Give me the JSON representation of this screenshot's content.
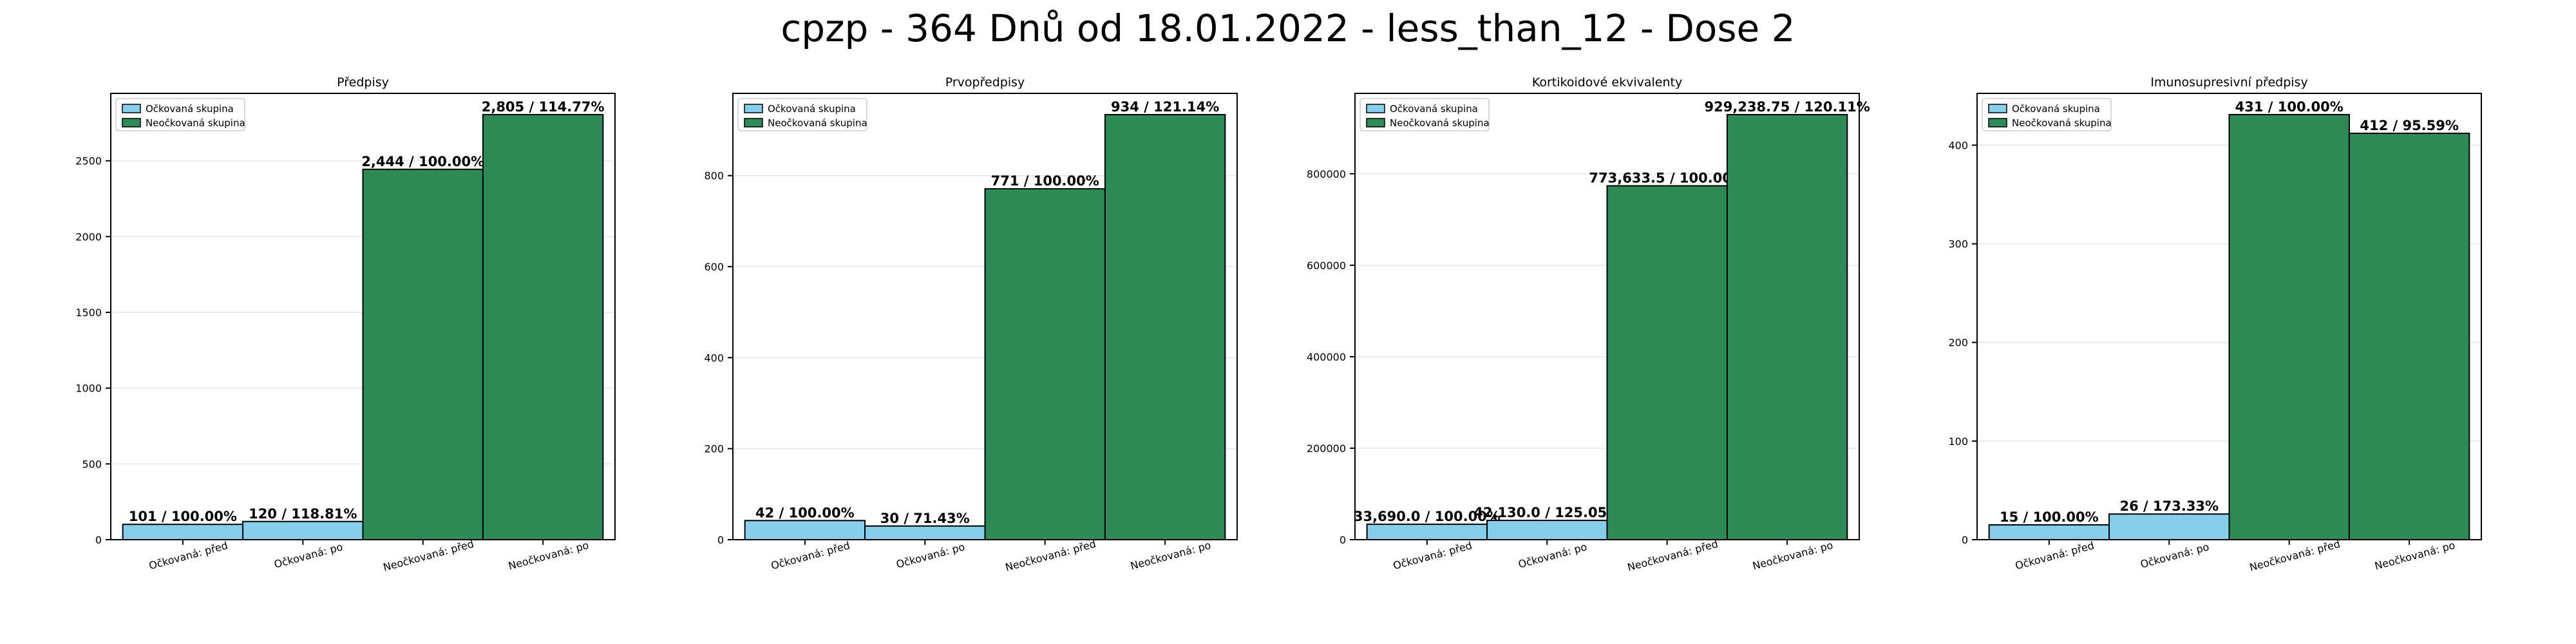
{
  "figure": {
    "title": "cpzp - 364 Dnů od 18.01.2022 - less_than_12 - Dose 2"
  },
  "colors": {
    "vaccinated": "#87ceeb",
    "unvaccinated": "#2e8b57",
    "edge": "#000000",
    "grid": "#e6e6e6"
  },
  "chart_data": [
    {
      "type": "bar",
      "title": "Předpisy",
      "categories": [
        "Očkovaná: před",
        "Očkovaná: po",
        "Neočkovaná: před",
        "Neočkovaná: po"
      ],
      "values": [
        101,
        120,
        2444,
        2805
      ],
      "bar_labels": [
        "101 / 100.00%",
        "120 / 118.81%",
        "2,444 / 100.00%",
        "2,805 / 114.77%"
      ],
      "bar_series": [
        "vaccinated",
        "vaccinated",
        "unvaccinated",
        "unvaccinated"
      ],
      "legend": [
        "Očkovaná skupina",
        "Neočkovaná skupina"
      ],
      "legend_position": "upper-left",
      "yticks": [
        0,
        500,
        1000,
        1500,
        2000,
        2500
      ],
      "ylim": [
        0,
        2945
      ],
      "grid": true
    },
    {
      "type": "bar",
      "title": "Prvopředpisy",
      "categories": [
        "Očkovaná: před",
        "Očkovaná: po",
        "Neočkovaná: před",
        "Neočkovaná: po"
      ],
      "values": [
        42,
        30,
        771,
        934
      ],
      "bar_labels": [
        "42 / 100.00%",
        "30 / 71.43%",
        "771 / 100.00%",
        "934 / 121.14%"
      ],
      "bar_series": [
        "vaccinated",
        "vaccinated",
        "unvaccinated",
        "unvaccinated"
      ],
      "legend": [
        "Očkovaná skupina",
        "Neočkovaná skupina"
      ],
      "legend_position": "upper-left",
      "yticks": [
        0,
        200,
        400,
        600,
        800
      ],
      "ylim": [
        0,
        980.7
      ],
      "grid": true
    },
    {
      "type": "bar",
      "title": "Kortikoidové ekvivalenty",
      "categories": [
        "Očkovaná: před",
        "Očkovaná: po",
        "Neočkovaná: před",
        "Neočkovaná: po"
      ],
      "values": [
        33690.0,
        42130.0,
        773633.5,
        929238.75
      ],
      "bar_labels": [
        "33,690.0 / 100.00%",
        "42,130.0 / 125.05%",
        "773,633.5 / 100.00%",
        "929,238.75 / 120.11%"
      ],
      "bar_series": [
        "vaccinated",
        "vaccinated",
        "unvaccinated",
        "unvaccinated"
      ],
      "legend": [
        "Očkovaná skupina",
        "Neočkovaná skupina"
      ],
      "legend_position": "upper-left",
      "yticks": [
        0,
        200000,
        400000,
        600000,
        800000
      ],
      "ylim": [
        0,
        975700
      ],
      "grid": true
    },
    {
      "type": "bar",
      "title": "Imunosupresivní předpisy",
      "categories": [
        "Očkovaná: před",
        "Očkovaná: po",
        "Neočkovaná: před",
        "Neočkovaná: po"
      ],
      "values": [
        15,
        26,
        431,
        412
      ],
      "bar_labels": [
        "15 / 100.00%",
        "26 / 173.33%",
        "431 / 100.00%",
        "412 / 95.59%"
      ],
      "bar_series": [
        "vaccinated",
        "vaccinated",
        "unvaccinated",
        "unvaccinated"
      ],
      "legend": [
        "Očkovaná skupina",
        "Neočkovaná skupina"
      ],
      "legend_position": "upper-left",
      "yticks": [
        0,
        100,
        200,
        300,
        400
      ],
      "ylim": [
        0,
        452.5
      ],
      "grid": true
    }
  ]
}
